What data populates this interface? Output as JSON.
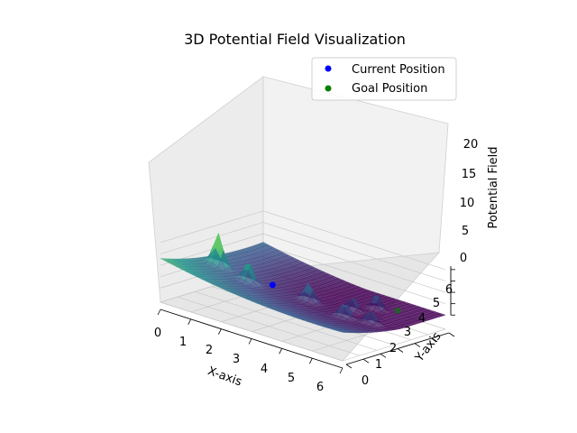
{
  "chart_data": {
    "type": "surface3d",
    "title": "3D Potential Field Visualization",
    "xlabel": "X-axis",
    "ylabel": "Y-axis",
    "zlabel": "Potential Field",
    "xlim": [
      0,
      6
    ],
    "ylim": [
      0,
      6
    ],
    "zlim": [
      0,
      22
    ],
    "xticks": [
      "0",
      "1",
      "2",
      "3",
      "4",
      "5",
      "6"
    ],
    "yticks": [
      "0",
      "1",
      "2",
      "3",
      "4",
      "5",
      "6"
    ],
    "zticks": [
      "0",
      "5",
      "10",
      "15",
      "20"
    ],
    "colormap": "viridis",
    "grid": true,
    "legend_position": "upper right",
    "current_position": {
      "label": "Current Position",
      "x": 2,
      "y": 3,
      "z": 3,
      "color": "#0000ff"
    },
    "goal_position": {
      "label": "Goal Position",
      "x": 5,
      "y": 5,
      "z": 0,
      "color": "#008000"
    }
  }
}
